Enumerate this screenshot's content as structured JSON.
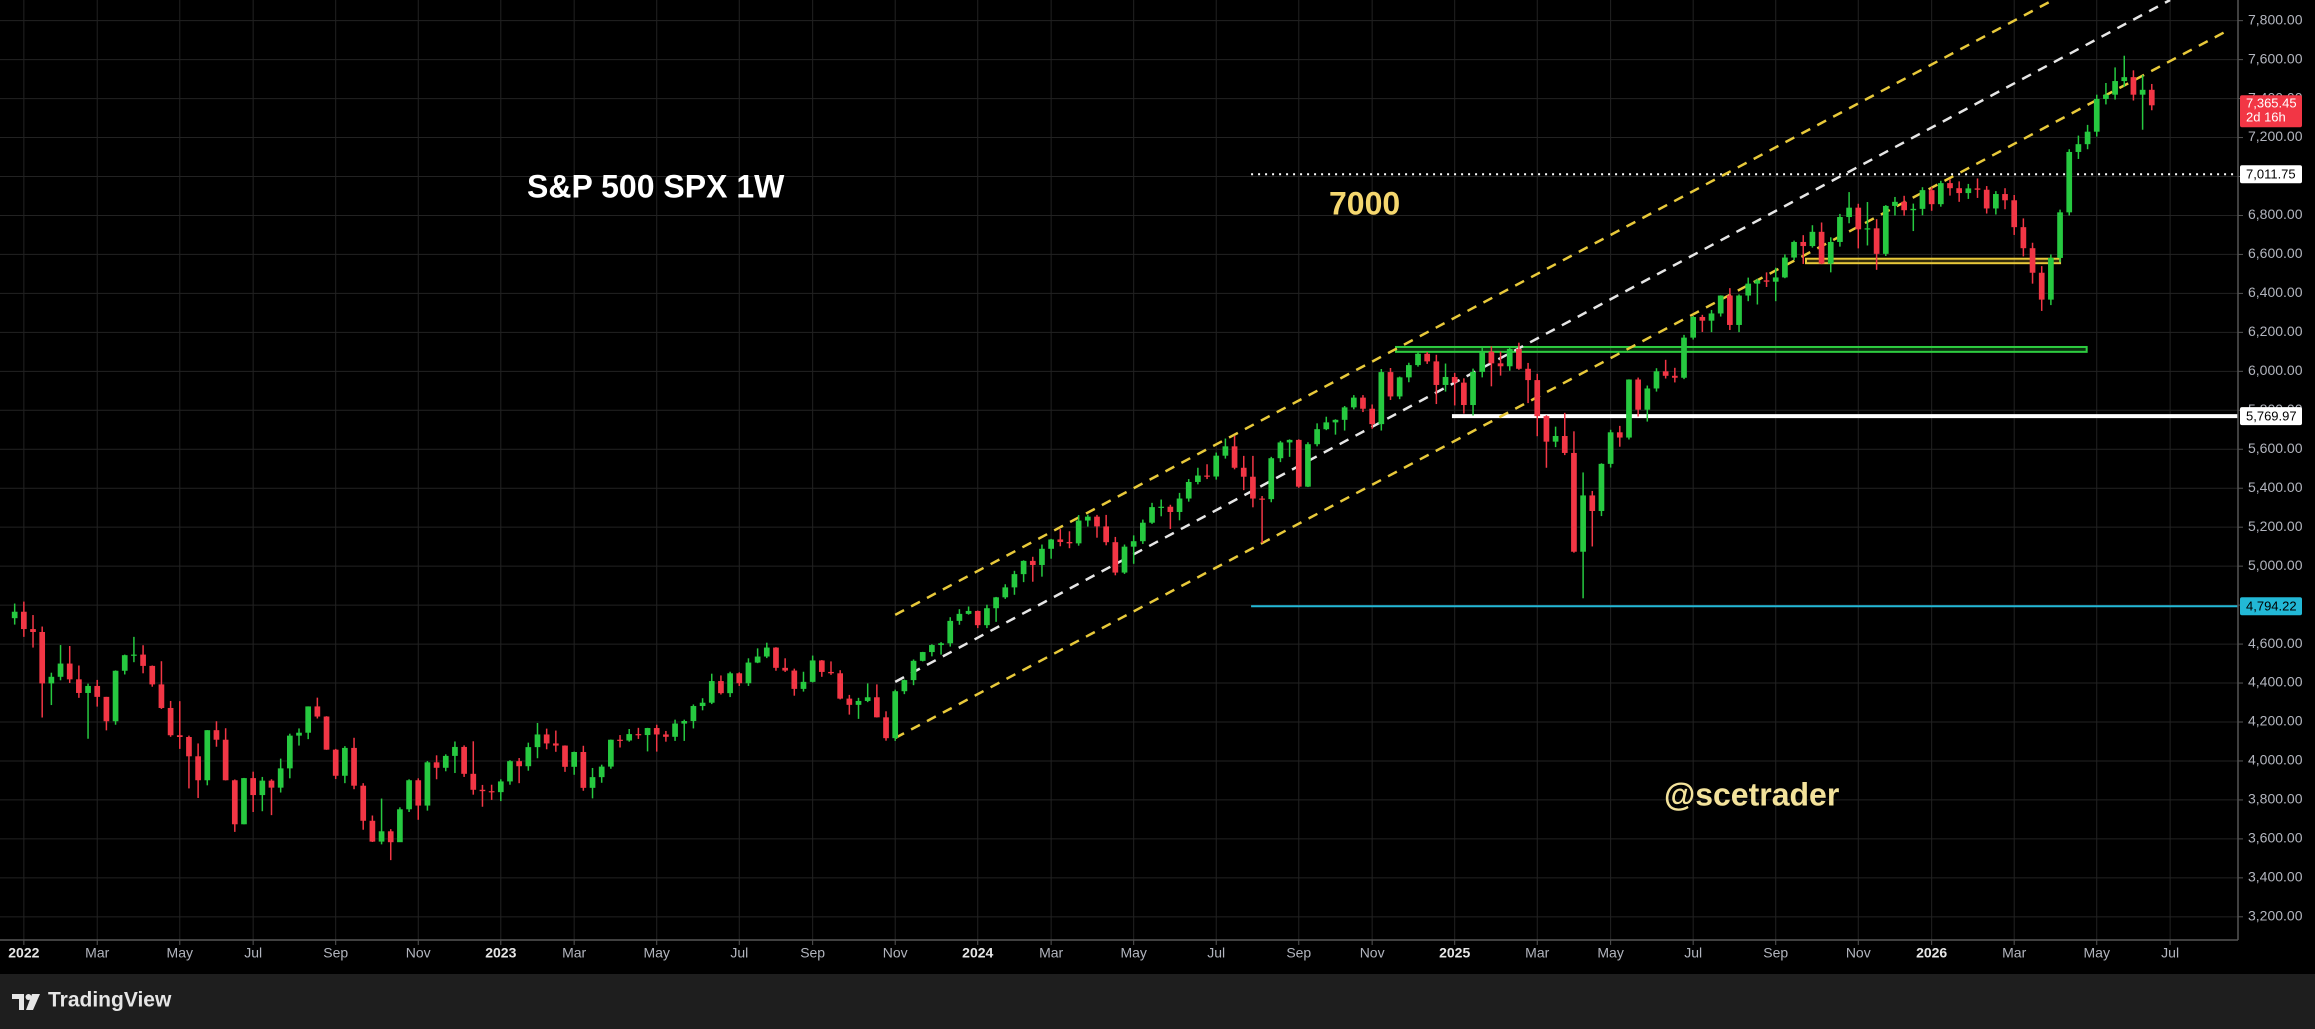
{
  "chart_data": {
    "type": "candlestick",
    "title": "S&P 500 SPX 1W",
    "annotations": [
      "7000",
      "@scetrader"
    ],
    "brand": "TradingView",
    "up_color": "#26c940",
    "down_color": "#f23645",
    "grid": true,
    "xlim": [
      -1.6,
      242.4
    ],
    "ylim": [
      3081,
      7906
    ],
    "xticks": [
      {
        "value": 1,
        "label": "2022"
      },
      {
        "value": 9,
        "label": "Mar"
      },
      {
        "value": 18,
        "label": "May"
      },
      {
        "value": 26,
        "label": "Jul"
      },
      {
        "value": 35,
        "label": "Sep"
      },
      {
        "value": 44,
        "label": "Nov"
      },
      {
        "value": 53,
        "label": "2023"
      },
      {
        "value": 61,
        "label": "Mar"
      },
      {
        "value": 70,
        "label": "May"
      },
      {
        "value": 79,
        "label": "Jul"
      },
      {
        "value": 87,
        "label": "Sep"
      },
      {
        "value": 96,
        "label": "Nov"
      },
      {
        "value": 105,
        "label": "2024"
      },
      {
        "value": 113,
        "label": "Mar"
      },
      {
        "value": 122,
        "label": "May"
      },
      {
        "value": 131,
        "label": "Jul"
      },
      {
        "value": 140,
        "label": "Sep"
      },
      {
        "value": 148,
        "label": "Nov"
      },
      {
        "value": 157,
        "label": "2025"
      },
      {
        "value": 166,
        "label": "Mar"
      },
      {
        "value": 174,
        "label": "May"
      },
      {
        "value": 183,
        "label": "Jul"
      },
      {
        "value": 192,
        "label": "Sep"
      },
      {
        "value": 201,
        "label": "Nov"
      },
      {
        "value": 209,
        "label": "2026"
      },
      {
        "value": 218,
        "label": "Mar"
      },
      {
        "value": 227,
        "label": "May"
      },
      {
        "value": 235,
        "label": "Jul"
      }
    ],
    "yticks": [
      {
        "value": 3200,
        "label": "3,200.00"
      },
      {
        "value": 3400,
        "label": "3,400.00"
      },
      {
        "value": 3600,
        "label": "3,600.00"
      },
      {
        "value": 3800,
        "label": "3,800.00"
      },
      {
        "value": 4000,
        "label": "4,000.00"
      },
      {
        "value": 4200,
        "label": "4,200.00"
      },
      {
        "value": 4400,
        "label": "4,400.00"
      },
      {
        "value": 4600,
        "label": "4,600.00"
      },
      {
        "value": 4800,
        "label": "4,800.00"
      },
      {
        "value": 5000,
        "label": "5,000.00"
      },
      {
        "value": 5200,
        "label": "5,200.00"
      },
      {
        "value": 5400,
        "label": "5,400.00"
      },
      {
        "value": 5600,
        "label": "5,600.00"
      },
      {
        "value": 5800,
        "label": "5,800.00"
      },
      {
        "value": 6000,
        "label": "6,000.00"
      },
      {
        "value": 6200,
        "label": "6,200.00"
      },
      {
        "value": 6400,
        "label": "6,400.00"
      },
      {
        "value": 6600,
        "label": "6,600.00"
      },
      {
        "value": 6800,
        "label": "6,800.00"
      },
      {
        "value": 7000,
        "label": "7,000.00"
      },
      {
        "value": 7200,
        "label": "7,200.00"
      },
      {
        "value": 7400,
        "label": "7,400.00"
      },
      {
        "value": 7600,
        "label": "7,600.00"
      },
      {
        "value": 7800,
        "label": "7,800.00"
      }
    ],
    "open": [
      4733,
      4766,
      4677,
      4662,
      4398,
      4432,
      4500,
      4419,
      4349,
      4385,
      4329,
      4204,
      4463,
      4543,
      4546,
      4488,
      4393,
      4272,
      4132,
      4123,
      4024,
      3901,
      4158,
      4109,
      3901,
      3675,
      3912,
      3825,
      3899,
      3863,
      3962,
      4130,
      4145,
      4280,
      4228,
      4058,
      3924,
      4067,
      3873,
      3693,
      3586,
      3639,
      3583,
      3752,
      3901,
      3771,
      3993,
      3965,
      4026,
      4072,
      3934,
      3852,
      3845,
      3840,
      3895,
      3999,
      3973,
      4071,
      4136,
      4090,
      4079,
      3970,
      4046,
      3862,
      3917,
      3971,
      4109,
      4105,
      4138,
      4133,
      4169,
      4136,
      4124,
      4192,
      4205,
      4282,
      4299,
      4410,
      4348,
      4450,
      4399,
      4505,
      4536,
      4582,
      4478,
      4464,
      4370,
      4406,
      4516,
      4457,
      4450,
      4320,
      4288,
      4308,
      4327,
      4224,
      4117,
      4358,
      4415,
      4514,
      4559,
      4595,
      4604,
      4719,
      4755,
      4770,
      4697,
      4784,
      4840,
      4891,
      4959,
      5027,
      5006,
      5089,
      5137,
      5124,
      5117,
      5234,
      5254,
      5204,
      5123,
      4967,
      5100,
      5128,
      5223,
      5303,
      5305,
      5278,
      5347,
      5432,
      5465,
      5460,
      5567,
      5615,
      5505,
      5459,
      5347,
      5344,
      5554,
      5635,
      5648,
      5408,
      5626,
      5703,
      5738,
      5751,
      5815,
      5865,
      5808,
      5729,
      5996,
      5871,
      5969,
      6032,
      6090,
      6051,
      5930,
      5971,
      5942,
      5827,
      5997,
      6101,
      6041,
      6026,
      6115,
      6013,
      5955,
      5770,
      5639,
      5668,
      5581,
      5074,
      5363,
      5283,
      5525,
      5687,
      5660,
      5958,
      5803,
      5912,
      6000,
      5977,
      5967,
      6173,
      6279,
      6260,
      6297,
      6389,
      6238,
      6389,
      6450,
      6467,
      6460,
      6482,
      6584,
      6664,
      6643,
      6716,
      6553,
      6664,
      6792,
      6840,
      6729,
      6734,
      6603,
      6849,
      6870,
      6827,
      6834,
      6930,
      6858,
      6966,
      6940,
      6915,
      6939,
      6932,
      6836,
      6910,
      6878,
      6740,
      6632,
      6506,
      6368,
      6582,
      6816,
      7126,
      7166,
      7230,
      7398,
      7420,
      7490,
      7510,
      7420,
      7445
    ],
    "high": [
      4808,
      4818,
      4749,
      4690,
      4453,
      4595,
      4590,
      4490,
      4397,
      4416,
      4329,
      4465,
      4546,
      4637,
      4594,
      4490,
      4512,
      4308,
      4307,
      4130,
      4090,
      4158,
      4204,
      4168,
      3905,
      3913,
      3945,
      3918,
      3906,
      4012,
      4140,
      4167,
      4280,
      4325,
      4230,
      4062,
      4076,
      4119,
      3886,
      3720,
      3807,
      3650,
      3762,
      3906,
      3911,
      4000,
      4029,
      4034,
      4100,
      4080,
      4101,
      3877,
      3878,
      3906,
      4004,
      4015,
      4094,
      4195,
      4166,
      4156,
      4080,
      4048,
      4078,
      3964,
      3981,
      4110,
      4133,
      4164,
      4170,
      4170,
      4186,
      4154,
      4212,
      4212,
      4290,
      4322,
      4448,
      4439,
      4458,
      4455,
      4527,
      4578,
      4607,
      4584,
      4527,
      4474,
      4458,
      4541,
      4518,
      4511,
      4466,
      4339,
      4324,
      4398,
      4393,
      4255,
      4366,
      4418,
      4521,
      4560,
      4599,
      4610,
      4738,
      4779,
      4793,
      4772,
      4802,
      4842,
      4907,
      4976,
      5030,
      5048,
      5111,
      5140,
      5190,
      5179,
      5262,
      5264,
      5263,
      5263,
      5150,
      5111,
      5158,
      5239,
      5325,
      5342,
      5315,
      5376,
      5447,
      5505,
      5523,
      5583,
      5655,
      5669,
      5566,
      5566,
      5360,
      5561,
      5643,
      5651,
      5651,
      5636,
      5733,
      5767,
      5754,
      5822,
      5878,
      5878,
      5830,
      6012,
      6017,
      5973,
      6044,
      6100,
      6099,
      6085,
      6040,
      5992,
      5964,
      6014,
      6128,
      6128,
      6101,
      6127,
      6147,
      6043,
      5987,
      5775,
      5716,
      5787,
      5692,
      5481,
      5386,
      5528,
      5700,
      5720,
      5959,
      5968,
      5927,
      6016,
      6059,
      6018,
      6187,
      6284,
      6290,
      6315,
      6390,
      6427,
      6395,
      6481,
      6475,
      6508,
      6532,
      6600,
      6671,
      6699,
      6750,
      6764,
      6688,
      6808,
      6920,
      6860,
      6869,
      6781,
      6853,
      6895,
      6901,
      6861,
      6945,
      6945,
      6978,
      6986,
      6975,
      6962,
      6990,
      6951,
      6925,
      6940,
      6905,
      6785,
      6660,
      6540,
      6600,
      6830,
      7140,
      7210,
      7265,
      7420,
      7480,
      7560,
      7620,
      7545,
      7520,
      7475
    ],
    "low": [
      4700,
      4637,
      4582,
      4223,
      4287,
      4414,
      4400,
      4324,
      4114,
      4279,
      4157,
      4186,
      4444,
      4507,
      4450,
      4381,
      4267,
      4124,
      4062,
      3859,
      3810,
      3875,
      4073,
      3900,
      3636,
      3675,
      3738,
      3742,
      3722,
      3838,
      3911,
      4079,
      4112,
      4218,
      4057,
      3907,
      3886,
      3855,
      3647,
      3584,
      3572,
      3491,
      3590,
      3738,
      3698,
      3745,
      3906,
      3947,
      3938,
      3918,
      3827,
      3765,
      3800,
      3794,
      3878,
      3886,
      3950,
      4014,
      4060,
      4047,
      3944,
      3929,
      3847,
      3808,
      3888,
      3960,
      4069,
      4099,
      4113,
      4049,
      4048,
      4099,
      4103,
      4103,
      4167,
      4260,
      4292,
      4341,
      4328,
      4385,
      4385,
      4502,
      4528,
      4463,
      4457,
      4335,
      4356,
      4403,
      4432,
      4442,
      4316,
      4238,
      4216,
      4302,
      4223,
      4104,
      4103,
      4343,
      4389,
      4511,
      4537,
      4546,
      4587,
      4699,
      4751,
      4682,
      4682,
      4714,
      4832,
      4853,
      4918,
      4920,
      4946,
      5038,
      5102,
      5092,
      5105,
      5203,
      5146,
      5107,
      4953,
      4960,
      5012,
      5114,
      5217,
      5256,
      5191,
      5235,
      5331,
      5420,
      5447,
      5444,
      5552,
      5497,
      5390,
      5302,
      5119,
      5328,
      5534,
      5561,
      5402,
      5406,
      5615,
      5698,
      5675,
      5696,
      5805,
      5791,
      5705,
      5696,
      5853,
      5857,
      5944,
      6024,
      6038,
      5832,
      5896,
      5825,
      5783,
      5773,
      5969,
      5923,
      5978,
      6003,
      6008,
      5837,
      5667,
      5505,
      5611,
      5570,
      5069,
      4835,
      5101,
      5257,
      5506,
      5613,
      5650,
      5768,
      5742,
      5896,
      5963,
      5943,
      5960,
      6163,
      6202,
      6201,
      6281,
      6212,
      6201,
      6360,
      6343,
      6433,
      6360,
      6478,
      6571,
      6551,
      6635,
      6550,
      6508,
      6640,
      6760,
      6631,
      6646,
      6521,
      6592,
      6800,
      6799,
      6720,
      6801,
      6824,
      6845,
      6902,
      6870,
      6885,
      6890,
      6810,
      6805,
      6832,
      6700,
      6590,
      6450,
      6310,
      6340,
      6560,
      6800,
      7090,
      7140,
      7205,
      7370,
      7395,
      7460,
      7390,
      7240,
      7340
    ],
    "close": [
      4766,
      4677,
      4662,
      4398,
      4432,
      4500,
      4419,
      4349,
      4385,
      4329,
      4204,
      4463,
      4543,
      4546,
      4488,
      4393,
      4272,
      4132,
      4123,
      4024,
      3901,
      4158,
      4109,
      3901,
      3675,
      3912,
      3825,
      3899,
      3863,
      3962,
      4130,
      4145,
      4280,
      4228,
      4058,
      3924,
      4067,
      3873,
      3693,
      3586,
      3639,
      3583,
      3752,
      3901,
      3771,
      3993,
      3965,
      4026,
      4072,
      3934,
      3852,
      3845,
      3840,
      3895,
      3999,
      3973,
      4071,
      4136,
      4090,
      4079,
      3970,
      4046,
      3862,
      3917,
      3971,
      4109,
      4105,
      4138,
      4133,
      4169,
      4136,
      4124,
      4192,
      4205,
      4282,
      4299,
      4410,
      4348,
      4450,
      4399,
      4505,
      4536,
      4582,
      4478,
      4464,
      4370,
      4406,
      4516,
      4457,
      4450,
      4320,
      4288,
      4308,
      4327,
      4224,
      4117,
      4358,
      4415,
      4514,
      4559,
      4595,
      4604,
      4719,
      4755,
      4770,
      4697,
      4784,
      4840,
      4891,
      4959,
      5027,
      5006,
      5089,
      5137,
      5124,
      5117,
      5234,
      5254,
      5204,
      5123,
      4967,
      5100,
      5128,
      5223,
      5303,
      5305,
      5278,
      5347,
      5432,
      5465,
      5460,
      5567,
      5615,
      5505,
      5459,
      5347,
      5344,
      5554,
      5635,
      5648,
      5408,
      5626,
      5703,
      5738,
      5751,
      5815,
      5865,
      5808,
      5729,
      5996,
      5871,
      5969,
      6032,
      6090,
      6051,
      5930,
      5971,
      5942,
      5827,
      5997,
      6101,
      6041,
      6026,
      6115,
      6013,
      5955,
      5770,
      5639,
      5668,
      5581,
      5074,
      5363,
      5283,
      5525,
      5687,
      5660,
      5958,
      5803,
      5912,
      6000,
      5977,
      5967,
      6173,
      6279,
      6260,
      6297,
      6389,
      6238,
      6389,
      6450,
      6467,
      6460,
      6482,
      6584,
      6664,
      6643,
      6716,
      6553,
      6664,
      6792,
      6840,
      6729,
      6734,
      6603,
      6849,
      6870,
      6827,
      6834,
      6930,
      6858,
      6966,
      6940,
      6915,
      6939,
      6932,
      6836,
      6910,
      6878,
      6740,
      6632,
      6506,
      6368,
      6582,
      6816,
      7126,
      7166,
      7230,
      7398,
      7420,
      7490,
      7510,
      7420,
      7445,
      7365.45
    ],
    "trend_lines": [
      {
        "color": "#e8c93a",
        "style": "dashed",
        "points": [
          [
            96,
            4750
          ],
          [
            222,
            7900
          ]
        ]
      },
      {
        "color": "#e6e6e6",
        "style": "dashed",
        "points": [
          [
            96,
            4406
          ],
          [
            235,
            7906
          ]
        ]
      },
      {
        "color": "#e8c93a",
        "style": "dashed",
        "points": [
          [
            96,
            4118
          ],
          [
            241.5,
            7755
          ]
        ]
      }
    ],
    "zones": [
      {
        "color": "#2ecc40",
        "from": 150.6,
        "to": 225.9,
        "low": 6100,
        "high": 6125
      },
      {
        "color": "#e8c93a",
        "from": 195.3,
        "to": 223,
        "low": 6555,
        "high": 6578
      }
    ],
    "levels": [
      {
        "value": 7011.75,
        "label": "7,011.75",
        "color": "#ffffff",
        "style": "dotted",
        "from": 134.8
      },
      {
        "value": 5769.97,
        "label": "5,769.97",
        "color": "#ffffff",
        "style": "solid",
        "from": 156.7
      },
      {
        "value": 4794.22,
        "label": "4,794.22",
        "color": "#22b8d6",
        "style": "solid",
        "from": 134.8
      }
    ],
    "last_price": {
      "value": 7365.45,
      "label": "7,365.45",
      "countdown": "2d 16h",
      "color": "#f23645"
    }
  }
}
